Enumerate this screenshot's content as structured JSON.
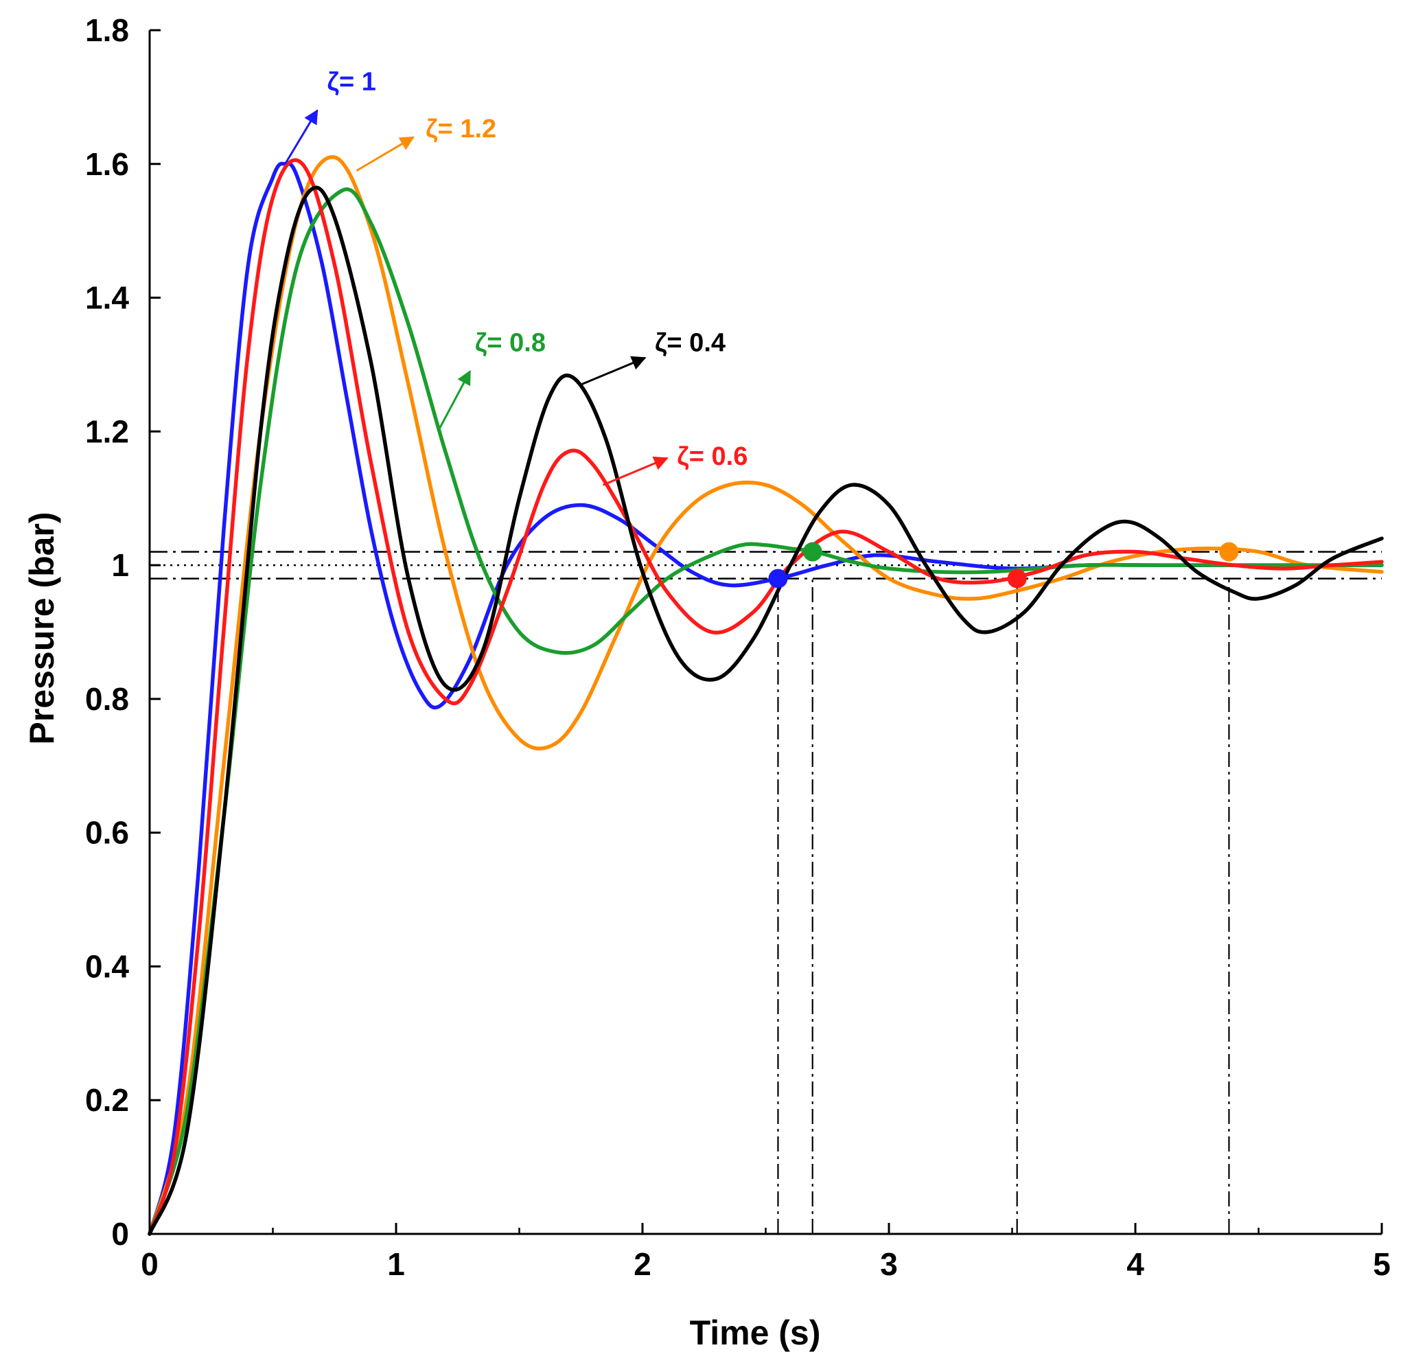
{
  "chart_data": {
    "type": "line",
    "xlabel": "Time (s)",
    "ylabel": "Pressure (bar)",
    "xlim": [
      0,
      5
    ],
    "ylim": [
      0,
      1.8
    ],
    "xticks": [
      "0",
      "1",
      "2",
      "3",
      "4",
      "5"
    ],
    "yticks": [
      "0",
      "0.2",
      "0.4",
      "0.6",
      "0.8",
      "1",
      "1.2",
      "1.4",
      "1.6",
      "1.8"
    ],
    "grid": false,
    "reference_lines": {
      "setpoint": 1.0,
      "tolerance_band": [
        0.98,
        1.02
      ],
      "settling_markers_x": [
        2.55,
        2.69,
        3.52,
        4.38
      ]
    },
    "series": [
      {
        "name": "ζ= 1",
        "color": "#1a1aff",
        "x": [
          0,
          0.1,
          0.2,
          0.3,
          0.4,
          0.5,
          0.55,
          0.6,
          0.7,
          0.8,
          0.9,
          1.0,
          1.1,
          1.18,
          1.3,
          1.45,
          1.6,
          1.75,
          1.9,
          2.05,
          2.2,
          2.35,
          2.55,
          2.75,
          2.95,
          3.2,
          3.5,
          3.8,
          4.1,
          4.4,
          4.7,
          5.0
        ],
        "y": [
          0,
          0.15,
          0.55,
          1.05,
          1.45,
          1.58,
          1.6,
          1.58,
          1.45,
          1.25,
          1.05,
          0.9,
          0.81,
          0.79,
          0.86,
          1.0,
          1.07,
          1.09,
          1.07,
          1.03,
          0.99,
          0.97,
          0.98,
          1.0,
          1.015,
          1.005,
          0.995,
          1.0,
          1.0,
          1.0,
          1.0,
          1.0
        ]
      },
      {
        "name": "ζ= 1.2",
        "color": "#ff8c00",
        "x": [
          0,
          0.15,
          0.3,
          0.45,
          0.6,
          0.75,
          0.9,
          1.05,
          1.2,
          1.35,
          1.5,
          1.63,
          1.75,
          1.9,
          2.05,
          2.2,
          2.35,
          2.5,
          2.65,
          2.8,
          3.0,
          3.2,
          3.35,
          3.5,
          3.7,
          3.9,
          4.1,
          4.3,
          4.5,
          4.7,
          5.0
        ],
        "y": [
          0,
          0.2,
          0.7,
          1.2,
          1.52,
          1.61,
          1.5,
          1.27,
          1.02,
          0.83,
          0.74,
          0.73,
          0.78,
          0.9,
          1.02,
          1.09,
          1.12,
          1.12,
          1.09,
          1.04,
          0.98,
          0.955,
          0.95,
          0.96,
          0.98,
          1.005,
          1.02,
          1.025,
          1.02,
          1.0,
          0.99
        ]
      },
      {
        "name": "ζ= 0.8",
        "color": "#1a9e2e",
        "x": [
          0,
          0.15,
          0.3,
          0.45,
          0.6,
          0.78,
          0.9,
          1.05,
          1.2,
          1.35,
          1.5,
          1.65,
          1.8,
          1.95,
          2.1,
          2.25,
          2.4,
          2.5,
          2.6,
          2.7,
          2.85,
          3.0,
          3.2,
          3.4,
          3.6,
          3.8,
          4.0,
          4.2,
          4.4,
          4.6,
          4.8,
          5.0
        ],
        "y": [
          0,
          0.18,
          0.62,
          1.12,
          1.45,
          1.56,
          1.51,
          1.36,
          1.17,
          1.0,
          0.9,
          0.87,
          0.88,
          0.93,
          0.98,
          1.01,
          1.03,
          1.03,
          1.025,
          1.02,
          1.005,
          0.995,
          0.99,
          0.99,
          0.995,
          1.0,
          1.0,
          1.0,
          1.0,
          1.0,
          1.0,
          1.0
        ]
      },
      {
        "name": "ζ= 0.6",
        "color": "#ff1a1a",
        "x": [
          0,
          0.1,
          0.2,
          0.3,
          0.4,
          0.5,
          0.62,
          0.75,
          0.9,
          1.05,
          1.2,
          1.3,
          1.45,
          1.6,
          1.7,
          1.8,
          1.95,
          2.1,
          2.28,
          2.45,
          2.6,
          2.8,
          3.0,
          3.2,
          3.4,
          3.6,
          3.8,
          4.0,
          4.2,
          4.4,
          4.6,
          4.8,
          5.0
        ],
        "y": [
          0,
          0.12,
          0.45,
          0.9,
          1.32,
          1.55,
          1.6,
          1.45,
          1.15,
          0.9,
          0.8,
          0.82,
          0.96,
          1.12,
          1.17,
          1.15,
          1.06,
          0.96,
          0.9,
          0.93,
          1.0,
          1.05,
          1.02,
          0.98,
          0.975,
          0.99,
          1.015,
          1.02,
          1.01,
          1.0,
          0.995,
          1.0,
          1.005
        ]
      },
      {
        "name": "ζ= 0.4",
        "color": "#000000",
        "x": [
          0,
          0.15,
          0.3,
          0.45,
          0.55,
          0.65,
          0.75,
          0.9,
          1.05,
          1.2,
          1.35,
          1.5,
          1.62,
          1.72,
          1.85,
          2.0,
          2.15,
          2.3,
          2.45,
          2.6,
          2.72,
          2.85,
          3.0,
          3.15,
          3.3,
          3.4,
          3.55,
          3.7,
          3.85,
          3.97,
          4.1,
          4.25,
          4.4,
          4.5,
          4.65,
          4.8,
          5.0
        ],
        "y": [
          0,
          0.15,
          0.62,
          1.2,
          1.45,
          1.56,
          1.52,
          1.3,
          0.98,
          0.82,
          0.87,
          1.1,
          1.25,
          1.28,
          1.19,
          0.99,
          0.86,
          0.83,
          0.89,
          1.0,
          1.08,
          1.12,
          1.09,
          1.0,
          0.92,
          0.9,
          0.93,
          1.0,
          1.05,
          1.065,
          1.04,
          0.99,
          0.96,
          0.95,
          0.97,
          1.01,
          1.04
        ]
      }
    ],
    "settling_points": [
      {
        "series": "ζ= 1",
        "x": 2.55,
        "y": 0.98,
        "color": "#1a1aff"
      },
      {
        "series": "ζ= 0.8",
        "x": 2.69,
        "y": 1.02,
        "color": "#1a9e2e"
      },
      {
        "series": "ζ= 0.6",
        "x": 3.52,
        "y": 0.98,
        "color": "#ff1a1a"
      },
      {
        "series": "ζ= 1.2",
        "x": 4.38,
        "y": 1.02,
        "color": "#ff8c00"
      }
    ],
    "annotations": [
      {
        "text": "ζ= 1",
        "color": "#1a1aff",
        "x": 0.72,
        "y": 1.71,
        "arrow_from": [
          0.55,
          1.6
        ],
        "arrow_to": [
          0.68,
          1.68
        ]
      },
      {
        "text": "ζ= 1.2",
        "color": "#ff8c00",
        "x": 1.12,
        "y": 1.64,
        "arrow_from": [
          0.84,
          1.59
        ],
        "arrow_to": [
          1.07,
          1.64
        ]
      },
      {
        "text": "ζ= 0.8",
        "color": "#1a9e2e",
        "x": 1.32,
        "y": 1.32,
        "arrow_from": [
          1.17,
          1.2
        ],
        "arrow_to": [
          1.3,
          1.29
        ]
      },
      {
        "text": "ζ= 0.4",
        "color": "#000000",
        "x": 2.05,
        "y": 1.32,
        "arrow_from": [
          1.75,
          1.27
        ],
        "arrow_to": [
          2.01,
          1.31
        ]
      },
      {
        "text": "ζ= 0.6",
        "color": "#ff1a1a",
        "x": 2.14,
        "y": 1.15,
        "arrow_from": [
          1.84,
          1.12
        ],
        "arrow_to": [
          2.1,
          1.16
        ]
      }
    ]
  }
}
